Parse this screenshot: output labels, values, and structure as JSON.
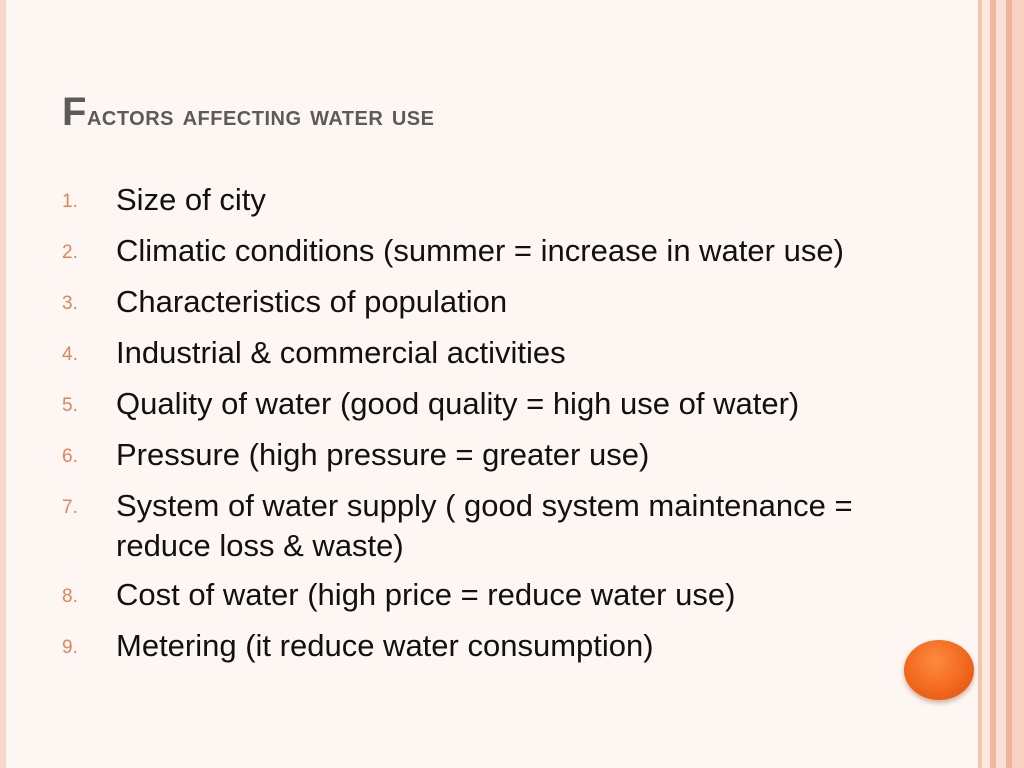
{
  "slide": {
    "title_first_letter": "F",
    "title_rest": "actors affecting water use",
    "items": [
      {
        "number": "1.",
        "text": "Size of city"
      },
      {
        "number": "2.",
        "text": "Climatic conditions (summer = increase in water use)"
      },
      {
        "number": "3.",
        "text": "Characteristics of population"
      },
      {
        "number": "4.",
        "text": "Industrial & commercial activities"
      },
      {
        "number": "5.",
        "text": "Quality of water (good quality = high use of water)"
      },
      {
        "number": "6.",
        "text": "Pressure (high pressure = greater use)"
      },
      {
        "number": "7.",
        "text": "System of water supply ( good system maintenance = reduce loss & waste)"
      },
      {
        "number": "8.",
        "text": "Cost of water (high price = reduce water use)"
      },
      {
        "number": "9.",
        "text": "Metering (it reduce water consumption)"
      }
    ]
  },
  "colors": {
    "background": "#fdf6f2",
    "title": "#5b5b5b",
    "numbers": "#e0855a",
    "text": "#111111",
    "accent_dot": "#f0651c"
  }
}
